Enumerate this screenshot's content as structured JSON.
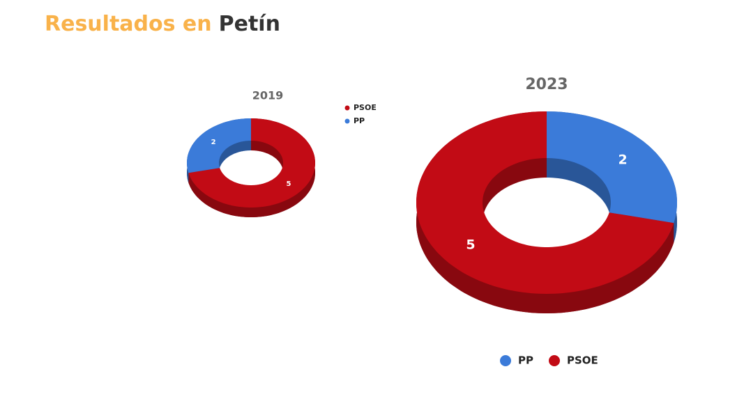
{
  "header": {
    "title": "Resultados en",
    "place": "Petín"
  },
  "chart_data": [
    {
      "type": "donut3d",
      "title": "2019",
      "categories": [
        "PSOE",
        "PP"
      ],
      "values": [
        5,
        2
      ],
      "colors": [
        "#c20b15",
        "#3b7bd9"
      ],
      "legend": "right"
    },
    {
      "type": "donut3d",
      "title": "2023",
      "categories": [
        "PP",
        "PSOE"
      ],
      "values": [
        2,
        5
      ],
      "colors": [
        "#3b7bd9",
        "#c20b15"
      ],
      "legend": "bottom"
    }
  ]
}
